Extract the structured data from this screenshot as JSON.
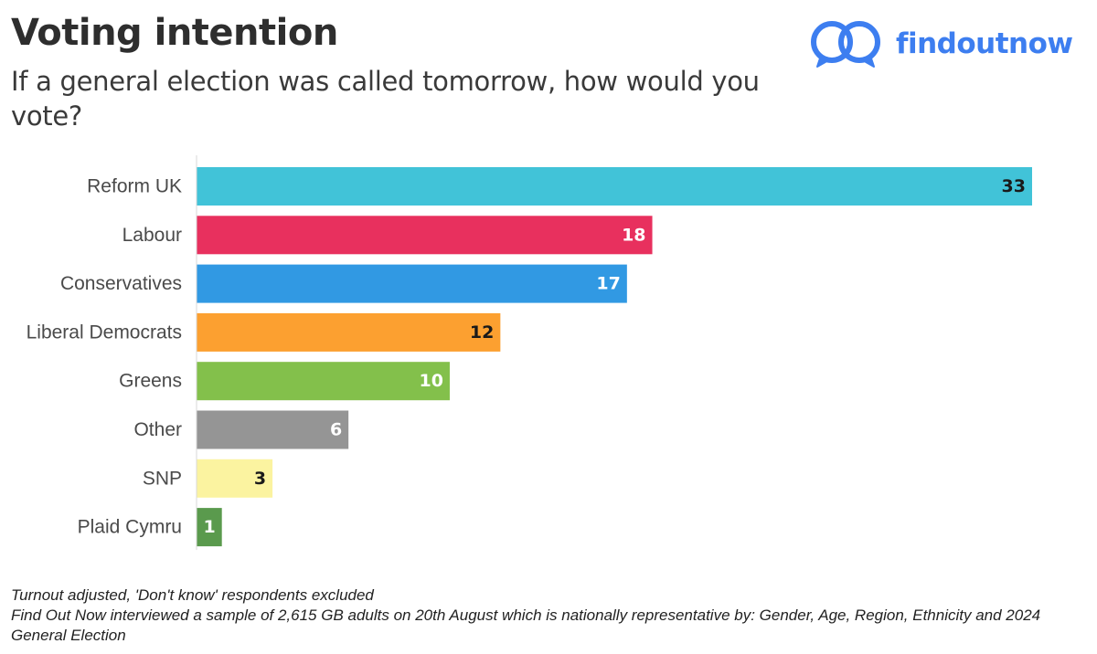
{
  "header": {
    "title": "Voting intention",
    "subtitle": "If a general election was called tomorrow, how would you vote?"
  },
  "brand": {
    "name": "findoutnow",
    "icon": "speech-bubbles-logo-icon",
    "color": "#3d7ef0"
  },
  "chart_data": {
    "type": "bar",
    "orientation": "horizontal",
    "categories": [
      "Reform UK",
      "Labour",
      "Conservatives",
      "Liberal Democrats",
      "Greens",
      "Other",
      "SNP",
      "Plaid Cymru"
    ],
    "values": [
      33,
      18,
      17,
      12,
      10,
      6,
      3,
      1
    ],
    "data_labels": [
      "33",
      "18",
      "17",
      "12",
      "10",
      "6",
      "3",
      "1"
    ],
    "colors": [
      "#41c3d8",
      "#e8305e",
      "#3199e3",
      "#fca030",
      "#83c04b",
      "#959595",
      "#fbf3a0",
      "#5a9a4d"
    ],
    "label_colors": [
      "#1a1a1a",
      "#ffffff",
      "#ffffff",
      "#1a1a1a",
      "#ffffff",
      "#ffffff",
      "#1a1a1a",
      "#ffffff"
    ],
    "xlim": [
      0,
      33
    ],
    "grid": false,
    "legend": "none"
  },
  "footnotes": {
    "line1": "Turnout adjusted, 'Don't know' respondents excluded",
    "line2": "Find Out Now interviewed a sample of 2,615 GB adults on 20th August which is nationally representative by: Gender, Age, Region, Ethnicity and 2024 General Election"
  }
}
